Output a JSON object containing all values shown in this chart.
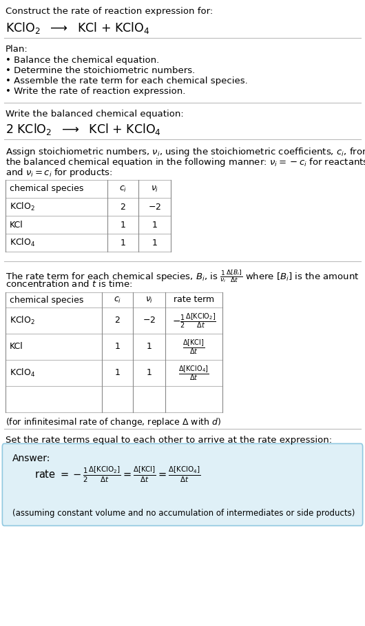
{
  "bg_color": "#ffffff",
  "text_color": "#000000",
  "title_line1": "Construct the rate of reaction expression for:",
  "title_eq": "KClO$_2$  $\\longrightarrow$  KCl + KClO$_4$",
  "plan_header": "Plan:",
  "plan_items": [
    "• Balance the chemical equation.",
    "• Determine the stoichiometric numbers.",
    "• Assemble the rate term for each chemical species.",
    "• Write the rate of reaction expression."
  ],
  "section2_header": "Write the balanced chemical equation:",
  "balanced_eq": "2 KClO$_2$  $\\longrightarrow$  KCl + KClO$_4$",
  "section3_text": [
    "Assign stoichiometric numbers, $\\nu_i$, using the stoichiometric coefficients, $c_i$, from",
    "the balanced chemical equation in the following manner: $\\nu_i = -c_i$ for reactants",
    "and $\\nu_i = c_i$ for products:"
  ],
  "table1_headers": [
    "chemical species",
    "$c_i$",
    "$\\nu_i$"
  ],
  "table1_rows": [
    [
      "KClO$_2$",
      "2",
      "$-2$"
    ],
    [
      "KCl",
      "1",
      "1"
    ],
    [
      "KClO$_4$",
      "1",
      "1"
    ]
  ],
  "section4_text": [
    "The rate term for each chemical species, $B_i$, is $\\frac{1}{\\nu_i}\\frac{\\Delta[B_i]}{\\Delta t}$ where $[B_i]$ is the amount",
    "concentration and $t$ is time:"
  ],
  "table2_headers": [
    "chemical species",
    "$c_i$",
    "$\\nu_i$",
    "rate term"
  ],
  "table2_rows": [
    [
      "KClO$_2$",
      "2",
      "$-2$",
      "$-\\frac{1}{2}\\frac{\\Delta[\\mathrm{KClO_2}]}{\\Delta t}$"
    ],
    [
      "KCl",
      "1",
      "1",
      "$\\frac{\\Delta[\\mathrm{KCl}]}{\\Delta t}$"
    ],
    [
      "KClO$_4$",
      "1",
      "1",
      "$\\frac{\\Delta[\\mathrm{KClO_4}]}{\\Delta t}$"
    ]
  ],
  "infinitesimal_note": "(for infinitesimal rate of change, replace Δ with $d$)",
  "section5_header": "Set the rate terms equal to each other to arrive at the rate expression:",
  "answer_label": "Answer:",
  "answer_eq": "rate $= -\\frac{1}{2}\\frac{\\Delta[\\mathrm{KClO_2}]}{\\Delta t} = \\frac{\\Delta[\\mathrm{KCl}]}{\\Delta t} = \\frac{\\Delta[\\mathrm{KClO_4}]}{\\Delta t}$",
  "answer_note": "(assuming constant volume and no accumulation of intermediates or side products)",
  "answer_box_color": "#dff0f7",
  "answer_box_border": "#90c8e0",
  "separator_color": "#bbbbbb"
}
